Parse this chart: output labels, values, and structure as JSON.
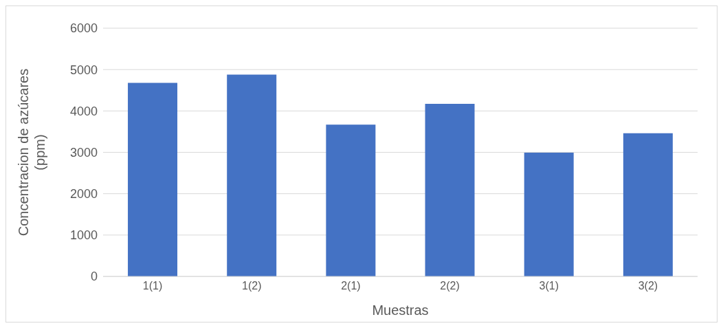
{
  "chart_data": {
    "type": "bar",
    "xlabel": "Muestras",
    "ylabel": "Concentracion de azúcares (ppm)",
    "categories": [
      "1(1)",
      "1(2)",
      "2(1)",
      "2(2)",
      "3(1)",
      "3(2)"
    ],
    "values": [
      4680,
      4880,
      3670,
      4170,
      2990,
      3460
    ],
    "color": "#4472c4",
    "ylim": [
      0,
      6000
    ],
    "yticks": [
      0,
      1000,
      2000,
      3000,
      4000,
      5000,
      6000
    ],
    "grid": "y",
    "legend": false
  }
}
